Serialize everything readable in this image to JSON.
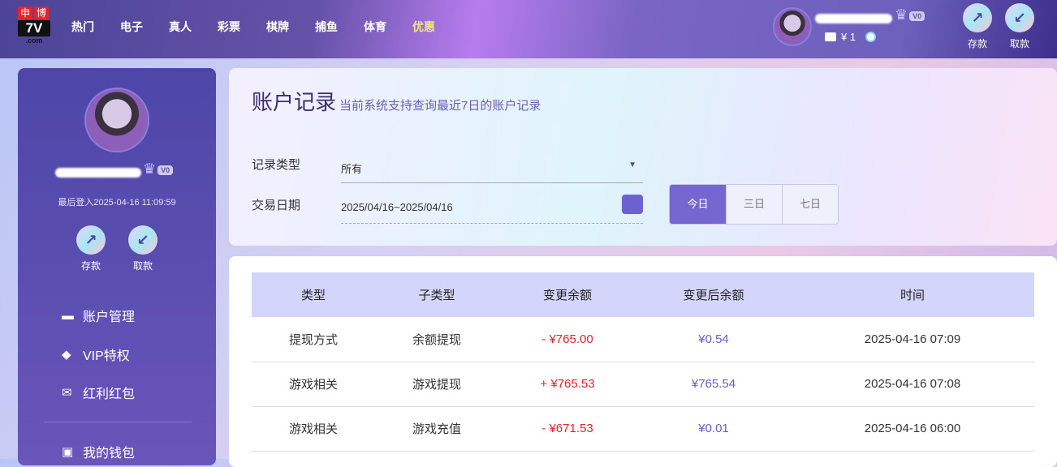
{
  "header": {
    "logo_top": [
      "申",
      "博"
    ],
    "logo_main": "7V",
    "logo_sub": ".com",
    "nav": [
      "热门",
      "电子",
      "真人",
      "彩票",
      "棋牌",
      "捕鱼",
      "体育",
      "优惠"
    ],
    "highlight_color": "#f3e58a",
    "vip": "V0",
    "balance": "¥ 1",
    "deposit": "存款",
    "withdraw": "取款"
  },
  "sidebar": {
    "vip": "V0",
    "last_login": "最后登入2025-04-16 11:09:59",
    "deposit": "存款",
    "withdraw": "取款",
    "menu": [
      {
        "icon": "card-icon",
        "label": "账户管理"
      },
      {
        "icon": "diamond-icon",
        "label": "VIP特权"
      },
      {
        "icon": "envelope-icon",
        "label": "红利红包"
      },
      {
        "icon": "wallet-icon",
        "label": "我的钱包"
      }
    ]
  },
  "filter": {
    "title": "账户记录",
    "subtitle": "当前系统支持查询最近7日的账户记录",
    "type_label": "记录类型",
    "type_value": "所有",
    "date_label": "交易日期",
    "date_value": "2025/04/16~2025/04/16",
    "ranges": [
      "今日",
      "三日",
      "七日"
    ]
  },
  "table": {
    "headers": [
      "类型",
      "子类型",
      "变更余额",
      "变更后余额",
      "时间"
    ],
    "rows": [
      [
        "提现方式",
        "余额提现",
        "- ¥765.00",
        "¥0.54",
        "2025-04-16 07:09"
      ],
      [
        "游戏相关",
        "游戏提现",
        "+ ¥765.53",
        "¥765.54",
        "2025-04-16 07:08"
      ],
      [
        "游戏相关",
        "游戏充值",
        "- ¥671.53",
        "¥0.01",
        "2025-04-16 06:00"
      ]
    ]
  }
}
